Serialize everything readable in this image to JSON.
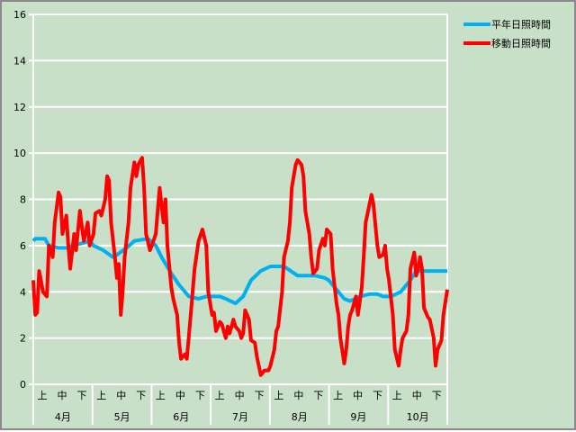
{
  "chart_data": {
    "type": "line",
    "title": "",
    "xlabel": "",
    "ylabel": "",
    "ylim": [
      0,
      16
    ],
    "yticks": [
      0,
      2,
      4,
      6,
      8,
      10,
      12,
      14,
      16
    ],
    "x_unit": "day index from April 1 (0-213)",
    "xlim": [
      0,
      213
    ],
    "grid": "horizontal",
    "legend_position": "top-right",
    "months": [
      "4月",
      "5月",
      "6月",
      "7月",
      "8月",
      "9月",
      "10月"
    ],
    "sub_periods": [
      "上",
      "中",
      "下"
    ],
    "series": [
      {
        "name": "平年日照時間",
        "color": "#00b0f0",
        "points": [
          [
            0,
            6.2
          ],
          [
            1,
            6.3
          ],
          [
            6,
            6.3
          ],
          [
            8,
            6.0
          ],
          [
            13,
            5.9
          ],
          [
            18,
            5.9
          ],
          [
            20,
            6.0
          ],
          [
            25,
            6.1
          ],
          [
            29,
            6.2
          ],
          [
            31,
            6.0
          ],
          [
            36,
            5.8
          ],
          [
            41,
            5.5
          ],
          [
            43,
            5.6
          ],
          [
            48,
            5.9
          ],
          [
            52,
            6.2
          ],
          [
            59,
            6.3
          ],
          [
            63,
            6.0
          ],
          [
            66,
            5.5
          ],
          [
            71,
            4.8
          ],
          [
            75,
            4.3
          ],
          [
            80,
            3.8
          ],
          [
            85,
            3.7
          ],
          [
            89,
            3.8
          ],
          [
            96,
            3.8
          ],
          [
            99,
            3.7
          ],
          [
            104,
            3.5
          ],
          [
            108,
            3.8
          ],
          [
            112,
            4.5
          ],
          [
            117,
            4.9
          ],
          [
            122,
            5.1
          ],
          [
            129,
            5.1
          ],
          [
            136,
            4.7
          ],
          [
            145,
            4.7
          ],
          [
            150,
            4.6
          ],
          [
            152,
            4.5
          ],
          [
            157,
            4.0
          ],
          [
            160,
            3.7
          ],
          [
            163,
            3.6
          ],
          [
            168,
            3.8
          ],
          [
            173,
            3.9
          ],
          [
            177,
            3.9
          ],
          [
            180,
            3.8
          ],
          [
            184,
            3.8
          ],
          [
            189,
            4.0
          ],
          [
            194,
            4.5
          ],
          [
            197,
            4.9
          ],
          [
            201,
            4.9
          ],
          [
            213,
            4.9
          ]
        ]
      },
      {
        "name": "移動日照時間",
        "color": "#ff0000",
        "points": [
          [
            0,
            4.5
          ],
          [
            1,
            3.0
          ],
          [
            2,
            3.1
          ],
          [
            3,
            4.9
          ],
          [
            5,
            4.0
          ],
          [
            7,
            3.8
          ],
          [
            8,
            6.0
          ],
          [
            10,
            5.5
          ],
          [
            11,
            7.0
          ],
          [
            13,
            8.3
          ],
          [
            14,
            8.1
          ],
          [
            15,
            6.5
          ],
          [
            17,
            7.3
          ],
          [
            18,
            6.0
          ],
          [
            19,
            5.0
          ],
          [
            21,
            6.5
          ],
          [
            22,
            5.8
          ],
          [
            24,
            7.5
          ],
          [
            25,
            6.8
          ],
          [
            26,
            6.2
          ],
          [
            28,
            7.0
          ],
          [
            29,
            6.0
          ],
          [
            31,
            6.5
          ],
          [
            32,
            7.4
          ],
          [
            34,
            7.5
          ],
          [
            35,
            7.3
          ],
          [
            37,
            8.0
          ],
          [
            38,
            9.0
          ],
          [
            39,
            8.8
          ],
          [
            40,
            7.0
          ],
          [
            42,
            5.5
          ],
          [
            43,
            4.6
          ],
          [
            44,
            5.2
          ],
          [
            45,
            3.0
          ],
          [
            46,
            4.0
          ],
          [
            47,
            5.5
          ],
          [
            49,
            7.0
          ],
          [
            50,
            8.5
          ],
          [
            52,
            9.6
          ],
          [
            53,
            9.0
          ],
          [
            54,
            9.5
          ],
          [
            56,
            9.8
          ],
          [
            57,
            8.5
          ],
          [
            58,
            6.5
          ],
          [
            60,
            5.8
          ],
          [
            61,
            6.0
          ],
          [
            63,
            6.5
          ],
          [
            64,
            7.5
          ],
          [
            65,
            8.5
          ],
          [
            67,
            7.0
          ],
          [
            68,
            8.0
          ],
          [
            69,
            6.0
          ],
          [
            71,
            4.2
          ],
          [
            72,
            3.7
          ],
          [
            74,
            3.0
          ],
          [
            75,
            1.8
          ],
          [
            76,
            1.1
          ],
          [
            78,
            1.3
          ],
          [
            79,
            1.1
          ],
          [
            81,
            3.0
          ],
          [
            83,
            5.0
          ],
          [
            85,
            6.2
          ],
          [
            87,
            6.7
          ],
          [
            89,
            6.0
          ],
          [
            90,
            4.0
          ],
          [
            92,
            3.0
          ],
          [
            93,
            3.1
          ],
          [
            94,
            2.3
          ],
          [
            96,
            2.7
          ],
          [
            97,
            2.6
          ],
          [
            99,
            2.0
          ],
          [
            100,
            2.5
          ],
          [
            101,
            2.2
          ],
          [
            103,
            2.8
          ],
          [
            104,
            2.5
          ],
          [
            106,
            2.3
          ],
          [
            107,
            2.0
          ],
          [
            108,
            2.2
          ],
          [
            109,
            3.2
          ],
          [
            111,
            2.8
          ],
          [
            112,
            1.9
          ],
          [
            114,
            1.8
          ],
          [
            115,
            1.2
          ],
          [
            117,
            0.4
          ],
          [
            119,
            0.6
          ],
          [
            121,
            0.6
          ],
          [
            122,
            0.8
          ],
          [
            124,
            1.5
          ],
          [
            125,
            2.3
          ],
          [
            126,
            2.5
          ],
          [
            128,
            4.0
          ],
          [
            129,
            5.5
          ],
          [
            131,
            6.2
          ],
          [
            132,
            7.0
          ],
          [
            133,
            8.5
          ],
          [
            135,
            9.5
          ],
          [
            136,
            9.7
          ],
          [
            138,
            9.5
          ],
          [
            139,
            9.0
          ],
          [
            140,
            7.5
          ],
          [
            142,
            6.5
          ],
          [
            143,
            5.5
          ],
          [
            144,
            4.8
          ],
          [
            146,
            5.0
          ],
          [
            147,
            5.8
          ],
          [
            149,
            6.3
          ],
          [
            150,
            6.0
          ],
          [
            151,
            6.7
          ],
          [
            153,
            6.5
          ],
          [
            154,
            5.0
          ],
          [
            156,
            3.5
          ],
          [
            157,
            3.0
          ],
          [
            158,
            2.0
          ],
          [
            160,
            0.9
          ],
          [
            161,
            1.5
          ],
          [
            162,
            2.5
          ],
          [
            163,
            3.0
          ],
          [
            164,
            3.2
          ],
          [
            166,
            3.8
          ],
          [
            167,
            3.0
          ],
          [
            169,
            4.2
          ],
          [
            170,
            5.5
          ],
          [
            171,
            7.0
          ],
          [
            173,
            7.8
          ],
          [
            174,
            8.2
          ],
          [
            175,
            7.8
          ],
          [
            177,
            6.0
          ],
          [
            178,
            5.5
          ],
          [
            180,
            5.6
          ],
          [
            181,
            6.0
          ],
          [
            182,
            5.0
          ],
          [
            183,
            4.5
          ],
          [
            185,
            3.0
          ],
          [
            186,
            1.5
          ],
          [
            188,
            0.8
          ],
          [
            189,
            1.5
          ],
          [
            190,
            2.0
          ],
          [
            192,
            2.3
          ],
          [
            193,
            3.0
          ],
          [
            194,
            5.0
          ],
          [
            196,
            5.7
          ],
          [
            197,
            4.7
          ],
          [
            198,
            5.0
          ],
          [
            199,
            5.5
          ],
          [
            200,
            5.0
          ],
          [
            201,
            3.3
          ],
          [
            203,
            2.9
          ],
          [
            204,
            2.8
          ],
          [
            206,
            2.0
          ],
          [
            207,
            0.8
          ],
          [
            208,
            1.5
          ],
          [
            210,
            1.9
          ],
          [
            211,
            3.0
          ],
          [
            213,
            4.1
          ]
        ]
      }
    ]
  }
}
